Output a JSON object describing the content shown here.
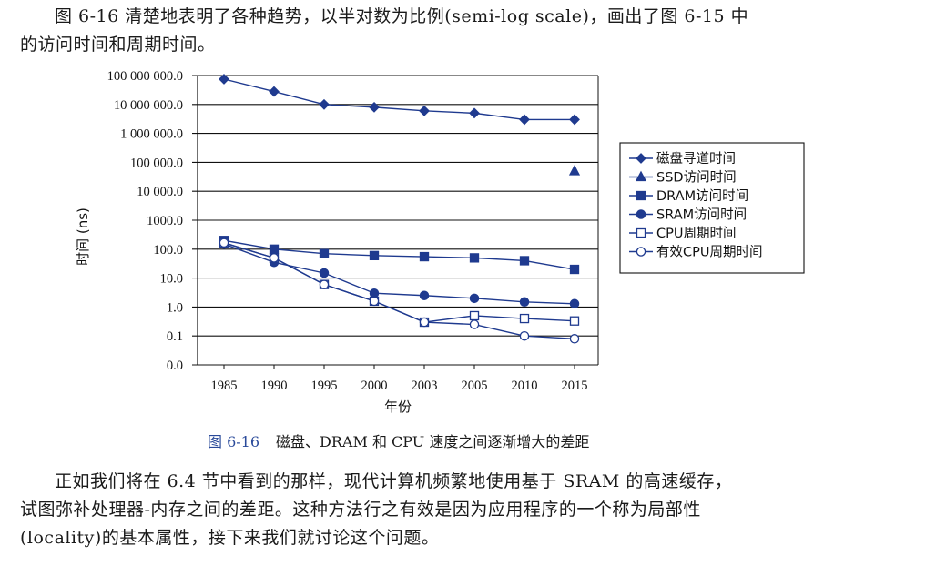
{
  "intro_text": [
    "图 6-16 清楚地表明了各种趋势，以半对数为比例(semi-log scale)，画出了图 6-15 中",
    "的访问时间和周期时间。"
  ],
  "caption": {
    "number": "图 6-16",
    "text": "磁盘、DRAM 和 CPU 速度之间逐渐增大的差距"
  },
  "body_text": [
    "正如我们将在 6.4 节中看到的那样，现代计算机频繁地使用基于 SRAM 的高速缓存，",
    "试图弥补处理器-内存之间的差距。这种方法行之有效是因为应用程序的一个称为局部性",
    "(locality)的基本属性，接下来我们就讨论这个问题。"
  ],
  "colors": {
    "series": "#1f3a8f",
    "gridline": "#111111",
    "caption_number": "#2a4a9a"
  },
  "chart_data": {
    "type": "line",
    "ylabel": "时间 (ns)",
    "xlabel": "年份",
    "y_scale": "log",
    "ylim": [
      0.01,
      100000000
    ],
    "y_ticks": [
      {
        "v": 100000000,
        "label": "100 000 000.0"
      },
      {
        "v": 10000000,
        "label": "10 000 000.0"
      },
      {
        "v": 1000000,
        "label": "1 000 000.0"
      },
      {
        "v": 100000,
        "label": "100 000.0"
      },
      {
        "v": 10000,
        "label": "10 000.0"
      },
      {
        "v": 1000,
        "label": "1000.0"
      },
      {
        "v": 100,
        "label": "100.0"
      },
      {
        "v": 10,
        "label": "10.0"
      },
      {
        "v": 1,
        "label": "1.0"
      },
      {
        "v": 0.1,
        "label": "0.1"
      },
      {
        "v": 0.01,
        "label": "0.0"
      }
    ],
    "categories": [
      "1985",
      "1990",
      "1995",
      "2000",
      "2003",
      "2005",
      "2010",
      "2015"
    ],
    "legend_position": "right",
    "grid": "horizontal",
    "series": [
      {
        "name": "磁盘寻道时间",
        "marker": "diamond",
        "fill": "solid",
        "values": [
          75000000,
          28000000,
          10000000,
          8000000,
          6000000,
          5000000,
          3000000,
          3000000
        ]
      },
      {
        "name": "SSD访问时间",
        "marker": "triangle",
        "fill": "solid",
        "values": [
          null,
          null,
          null,
          null,
          null,
          null,
          null,
          50000
        ]
      },
      {
        "name": "DRAM访问时间",
        "marker": "square",
        "fill": "solid",
        "values": [
          200,
          100,
          70,
          60,
          55,
          50,
          40,
          20
        ]
      },
      {
        "name": "SRAM访问时间",
        "marker": "circle",
        "fill": "solid",
        "values": [
          150,
          35,
          15,
          3,
          2.5,
          2,
          1.5,
          1.3
        ]
      },
      {
        "name": "CPU周期时间",
        "marker": "square",
        "fill": "open",
        "values": [
          166,
          50,
          6,
          1.6,
          0.3,
          0.5,
          0.4,
          0.33
        ]
      },
      {
        "name": "有效CPU周期时间",
        "marker": "circle",
        "fill": "open",
        "values": [
          166,
          50,
          6,
          1.6,
          0.3,
          0.25,
          0.1,
          0.08
        ]
      }
    ]
  }
}
